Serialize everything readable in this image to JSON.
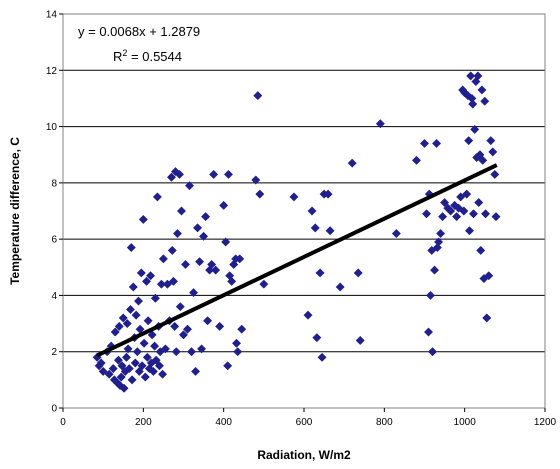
{
  "chart_data": {
    "type": "scatter",
    "title": "",
    "xlabel": "Radiation, W/m2",
    "ylabel": "Temperature difference, C",
    "xlim": [
      0,
      1200
    ],
    "ylim": [
      0,
      14
    ],
    "x_ticks": [
      "0",
      "200",
      "400",
      "600",
      "800",
      "1000",
      "1200"
    ],
    "y_ticks": [
      "0",
      "2",
      "4",
      "6",
      "8",
      "10",
      "12",
      "14"
    ],
    "grid": "horizontal",
    "marker": "diamond",
    "marker_color": "#1F1F8F",
    "trendline": {
      "equation": "y = 0.0068x + 1.2879",
      "r2": "R² = 0.5544",
      "slope": 0.0068,
      "intercept": 1.2879,
      "x_range": [
        85,
        1080
      ],
      "color": "#000000"
    },
    "series": [
      {
        "points": [
          [
            85,
            1.8
          ],
          [
            90,
            1.5
          ],
          [
            95,
            1.6
          ],
          [
            100,
            1.3
          ],
          [
            110,
            2.0
          ],
          [
            115,
            1.2
          ],
          [
            120,
            2.2
          ],
          [
            125,
            1.4
          ],
          [
            128,
            1.0
          ],
          [
            130,
            2.7
          ],
          [
            135,
            0.9
          ],
          [
            138,
            1.7
          ],
          [
            140,
            2.9
          ],
          [
            142,
            0.8
          ],
          [
            145,
            1.1
          ],
          [
            147,
            1.5
          ],
          [
            150,
            3.2
          ],
          [
            152,
            0.7
          ],
          [
            155,
            1.3
          ],
          [
            158,
            1.8
          ],
          [
            160,
            3.0
          ],
          [
            162,
            2.1
          ],
          [
            165,
            1.4
          ],
          [
            168,
            3.5
          ],
          [
            170,
            5.7
          ],
          [
            172,
            1.0
          ],
          [
            175,
            4.3
          ],
          [
            178,
            2.5
          ],
          [
            180,
            1.6
          ],
          [
            182,
            3.3
          ],
          [
            185,
            2.0
          ],
          [
            188,
            3.8
          ],
          [
            190,
            1.3
          ],
          [
            192,
            2.8
          ],
          [
            195,
            4.8
          ],
          [
            197,
            1.5
          ],
          [
            200,
            6.7
          ],
          [
            202,
            2.3
          ],
          [
            205,
            1.1
          ],
          [
            208,
            4.5
          ],
          [
            210,
            1.8
          ],
          [
            212,
            3.1
          ],
          [
            215,
            1.4
          ],
          [
            218,
            4.7
          ],
          [
            220,
            1.6
          ],
          [
            222,
            2.6
          ],
          [
            225,
            1.3
          ],
          [
            228,
            2.2
          ],
          [
            230,
            3.9
          ],
          [
            232,
            1.7
          ],
          [
            235,
            7.5
          ],
          [
            238,
            2.9
          ],
          [
            240,
            1.5
          ],
          [
            242,
            2.0
          ],
          [
            245,
            4.4
          ],
          [
            248,
            1.2
          ],
          [
            250,
            5.3
          ],
          [
            255,
            2.1
          ],
          [
            260,
            4.4
          ],
          [
            265,
            3.1
          ],
          [
            270,
            8.2
          ],
          [
            272,
            5.6
          ],
          [
            275,
            4.5
          ],
          [
            278,
            2.9
          ],
          [
            280,
            8.4
          ],
          [
            282,
            2.0
          ],
          [
            285,
            6.2
          ],
          [
            290,
            8.3
          ],
          [
            292,
            3.6
          ],
          [
            295,
            7.0
          ],
          [
            300,
            2.6
          ],
          [
            305,
            5.1
          ],
          [
            310,
            2.8
          ],
          [
            315,
            7.9
          ],
          [
            320,
            2.0
          ],
          [
            325,
            4.1
          ],
          [
            330,
            1.3
          ],
          [
            335,
            6.4
          ],
          [
            340,
            5.2
          ],
          [
            345,
            2.1
          ],
          [
            350,
            6.1
          ],
          [
            355,
            6.8
          ],
          [
            360,
            3.1
          ],
          [
            365,
            4.9
          ],
          [
            370,
            5.1
          ],
          [
            375,
            8.3
          ],
          [
            380,
            4.9
          ],
          [
            390,
            2.9
          ],
          [
            400,
            7.2
          ],
          [
            405,
            5.9
          ],
          [
            410,
            1.5
          ],
          [
            412,
            8.3
          ],
          [
            415,
            4.7
          ],
          [
            420,
            4.5
          ],
          [
            425,
            5.1
          ],
          [
            430,
            5.3
          ],
          [
            432,
            2.3
          ],
          [
            435,
            2.0
          ],
          [
            440,
            5.3
          ],
          [
            445,
            2.8
          ],
          [
            480,
            8.1
          ],
          [
            485,
            11.1
          ],
          [
            490,
            7.6
          ],
          [
            500,
            4.4
          ],
          [
            575,
            7.5
          ],
          [
            610,
            3.3
          ],
          [
            620,
            7.0
          ],
          [
            628,
            6.4
          ],
          [
            632,
            2.5
          ],
          [
            640,
            4.8
          ],
          [
            645,
            1.8
          ],
          [
            650,
            7.6
          ],
          [
            660,
            7.6
          ],
          [
            665,
            6.3
          ],
          [
            690,
            4.3
          ],
          [
            720,
            8.7
          ],
          [
            735,
            4.8
          ],
          [
            740,
            2.4
          ],
          [
            790,
            10.1
          ],
          [
            830,
            6.2
          ],
          [
            880,
            8.8
          ],
          [
            900,
            9.4
          ],
          [
            905,
            6.9
          ],
          [
            910,
            2.7
          ],
          [
            912,
            7.6
          ],
          [
            915,
            4.0
          ],
          [
            918,
            5.6
          ],
          [
            920,
            2.0
          ],
          [
            925,
            4.9
          ],
          [
            930,
            9.4
          ],
          [
            932,
            5.7
          ],
          [
            935,
            5.9
          ],
          [
            940,
            6.2
          ],
          [
            945,
            6.8
          ],
          [
            950,
            7.3
          ],
          [
            958,
            7.1
          ],
          [
            965,
            7.0
          ],
          [
            975,
            7.2
          ],
          [
            980,
            6.8
          ],
          [
            985,
            7.1
          ],
          [
            990,
            7.5
          ],
          [
            995,
            11.3
          ],
          [
            998,
            7.0
          ],
          [
            1000,
            11.2
          ],
          [
            1005,
            7.6
          ],
          [
            1008,
            11.1
          ],
          [
            1010,
            9.5
          ],
          [
            1012,
            6.3
          ],
          [
            1015,
            11.8
          ],
          [
            1018,
            11.0
          ],
          [
            1020,
            10.8
          ],
          [
            1022,
            6.9
          ],
          [
            1025,
            9.9
          ],
          [
            1028,
            11.6
          ],
          [
            1030,
            8.9
          ],
          [
            1033,
            11.8
          ],
          [
            1035,
            7.3
          ],
          [
            1038,
            9.0
          ],
          [
            1040,
            5.6
          ],
          [
            1043,
            11.3
          ],
          [
            1045,
            8.8
          ],
          [
            1048,
            4.6
          ],
          [
            1050,
            10.9
          ],
          [
            1052,
            6.9
          ],
          [
            1055,
            3.2
          ],
          [
            1060,
            4.7
          ],
          [
            1065,
            9.5
          ],
          [
            1070,
            9.1
          ],
          [
            1075,
            8.3
          ],
          [
            1078,
            6.8
          ]
        ]
      }
    ]
  }
}
